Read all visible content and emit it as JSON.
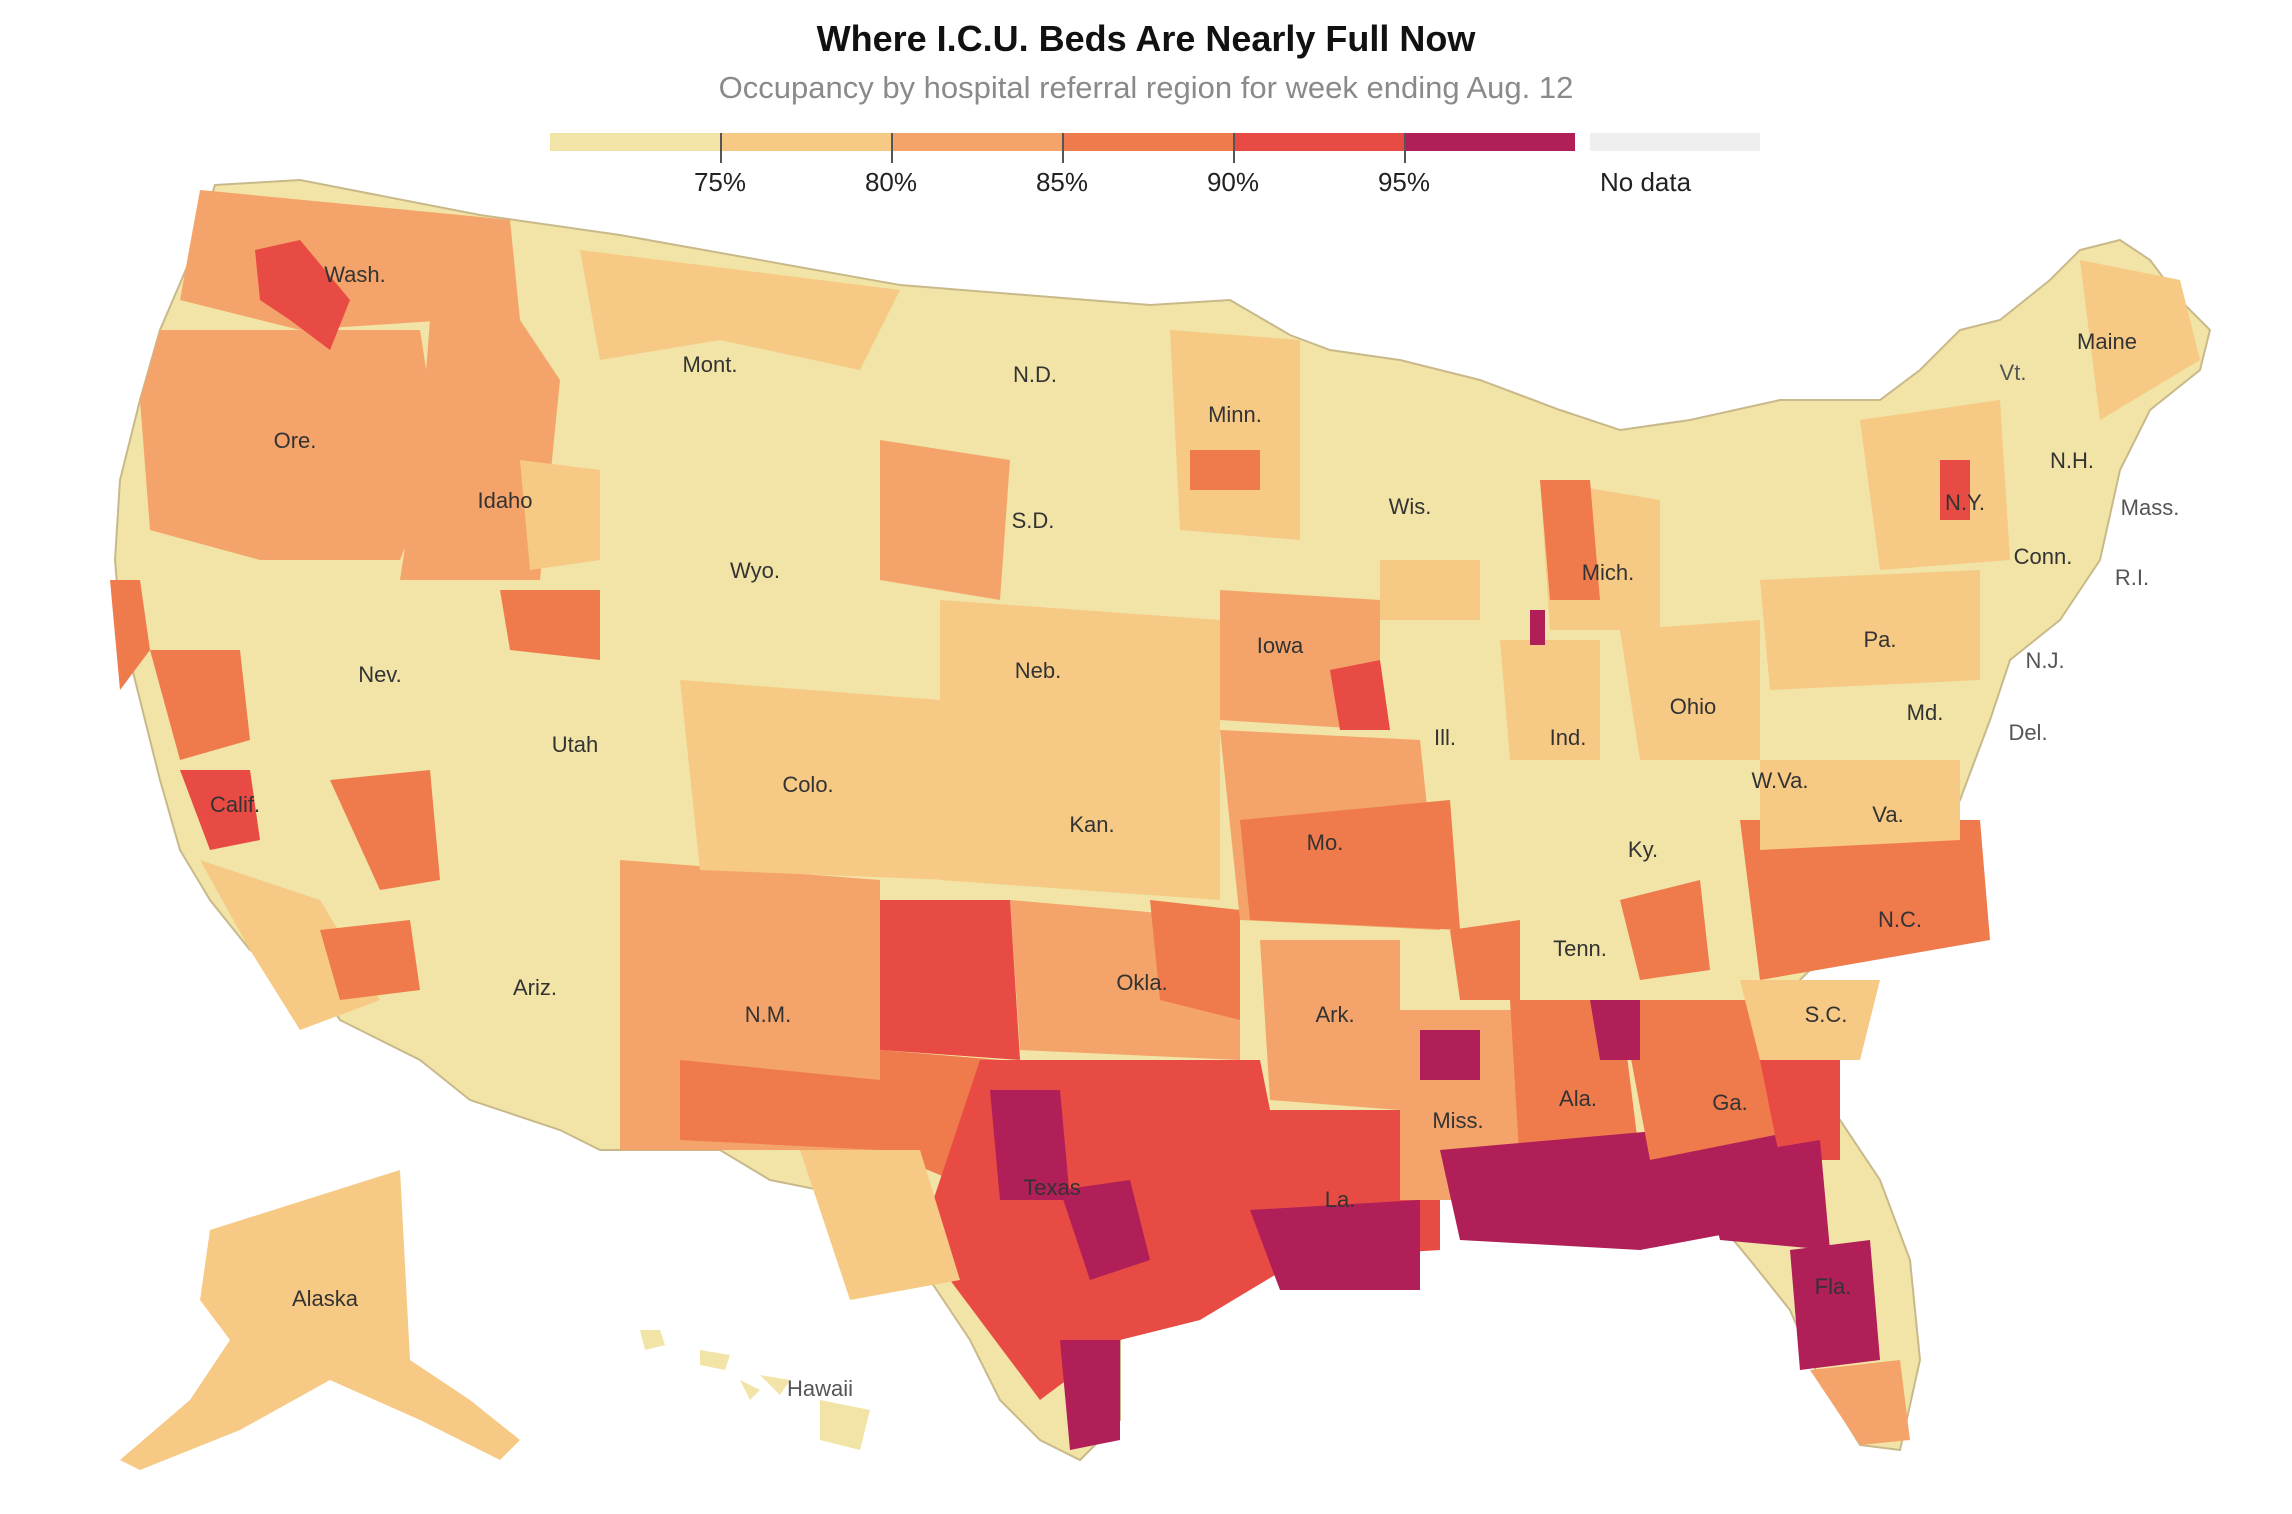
{
  "title": "Where I.C.U. Beds Are Nearly Full Now",
  "subtitle": "Occupancy by hospital referral region for week ending Aug. 12",
  "legend": {
    "bins": [
      {
        "color": "#f1e4a6"
      },
      {
        "color": "#f6c985"
      },
      {
        "color": "#f4a46a"
      },
      {
        "color": "#ef7a4c"
      },
      {
        "color": "#e84b43"
      },
      {
        "color": "#b01f57"
      }
    ],
    "ticks": [
      "75%",
      "80%",
      "85%",
      "90%",
      "95%"
    ],
    "no_data_label": "No data",
    "no_data_color": "#efefef"
  },
  "states": {
    "wash": "Wash.",
    "ore": "Ore.",
    "calif": "Calif.",
    "idaho": "Idaho",
    "nev": "Nev.",
    "mont": "Mont.",
    "wyo": "Wyo.",
    "utah": "Utah",
    "ariz": "Ariz.",
    "colo": "Colo.",
    "nm": "N.M.",
    "nd": "N.D.",
    "sd": "S.D.",
    "neb": "Neb.",
    "kan": "Kan.",
    "okla": "Okla.",
    "texas": "Texas",
    "minn": "Minn.",
    "iowa": "Iowa",
    "mo": "Mo.",
    "ark": "Ark.",
    "la": "La.",
    "wis": "Wis.",
    "ill": "Ill.",
    "mich": "Mich.",
    "ind": "Ind.",
    "ohio": "Ohio",
    "ky": "Ky.",
    "tenn": "Tenn.",
    "miss": "Miss.",
    "ala": "Ala.",
    "ga": "Ga.",
    "fla": "Fla.",
    "sc": "S.C.",
    "nc": "N.C.",
    "va": "Va.",
    "wva": "W.Va.",
    "pa": "Pa.",
    "ny": "N.Y.",
    "md": "Md.",
    "vt": "Vt.",
    "nh": "N.H.",
    "maine": "Maine",
    "mass": "Mass.",
    "conn": "Conn.",
    "ri": "R.I.",
    "nj": "N.J.",
    "del": "Del.",
    "alaska": "Alaska",
    "hawaii": "Hawaii"
  }
}
